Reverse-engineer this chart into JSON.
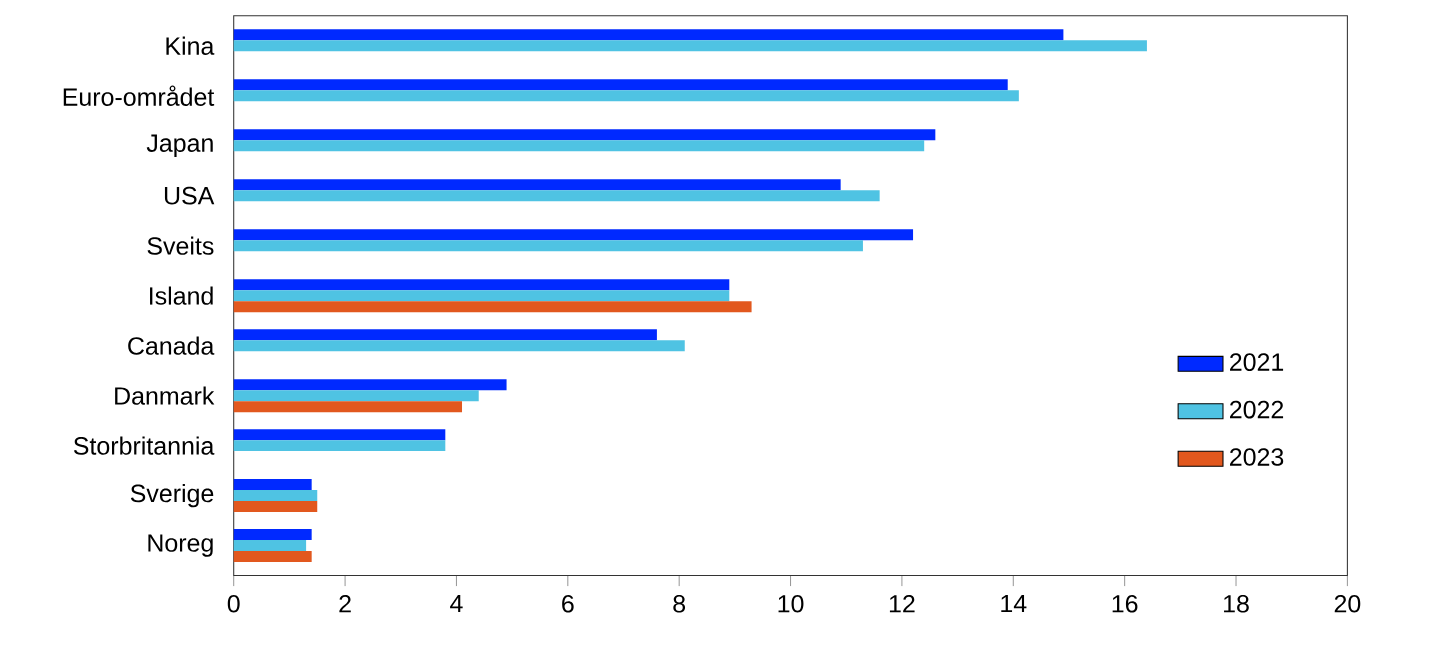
{
  "chart_data": {
    "type": "bar",
    "orientation": "horizontal",
    "categories": [
      "Kina",
      "Euro-området",
      "Japan",
      "USA",
      "Sveits",
      "Island",
      "Canada",
      "Danmark",
      "Storbritannia",
      "Sverige",
      "Noreg"
    ],
    "series": [
      {
        "name": "2021",
        "color": "#0029ff",
        "values": [
          14.9,
          13.9,
          12.6,
          10.9,
          12.2,
          8.9,
          7.6,
          4.9,
          3.8,
          1.4,
          1.4
        ]
      },
      {
        "name": "2022",
        "color": "#4fc3e3",
        "values": [
          16.4,
          14.1,
          12.4,
          11.6,
          11.3,
          8.9,
          8.1,
          4.4,
          3.8,
          1.5,
          1.3
        ]
      },
      {
        "name": "2023",
        "color": "#e2581e",
        "values": [
          null,
          null,
          null,
          null,
          null,
          9.3,
          null,
          4.1,
          null,
          1.5,
          1.4
        ]
      }
    ],
    "xlim": [
      0,
      20
    ],
    "xticks": [
      0,
      2,
      4,
      6,
      8,
      10,
      12,
      14,
      16,
      18,
      20
    ],
    "grid": false,
    "legend": "right"
  }
}
